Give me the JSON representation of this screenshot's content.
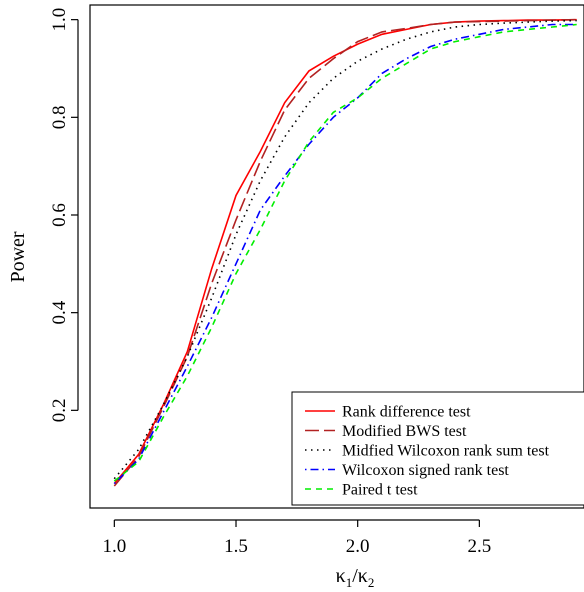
{
  "chart_data": {
    "type": "line",
    "xlabel_parts": [
      "κ",
      "1",
      "/κ",
      "2"
    ],
    "ylabel": "Power",
    "xlim": [
      0.9,
      2.93
    ],
    "ylim": [
      0.0,
      1.03
    ],
    "xticks": [
      1.0,
      1.5,
      2.0,
      2.5
    ],
    "xtick_labels": [
      "1.0",
      "1.5",
      "2.0",
      "2.5"
    ],
    "yticks": [
      0.2,
      0.4,
      0.6,
      0.8,
      1.0
    ],
    "ytick_labels": [
      "0.2",
      "0.4",
      "0.6",
      "0.8",
      "1.0"
    ],
    "grid": false,
    "legend_position": "bottom-right",
    "x": [
      1.0,
      1.1,
      1.2,
      1.3,
      1.4,
      1.5,
      1.6,
      1.7,
      1.8,
      1.9,
      2.0,
      2.1,
      2.2,
      2.3,
      2.4,
      2.5,
      2.6,
      2.7,
      2.8,
      2.9
    ],
    "series": [
      {
        "name": "Rank difference test",
        "color": "#ff0000",
        "dash": "solid",
        "values": [
          0.05,
          0.11,
          0.21,
          0.32,
          0.49,
          0.64,
          0.73,
          0.83,
          0.895,
          0.925,
          0.95,
          0.97,
          0.98,
          0.99,
          0.995,
          0.997,
          0.998,
          0.999,
          0.999,
          1.0
        ]
      },
      {
        "name": "Modified BWS test",
        "color": "#b22222",
        "dash": "longdash",
        "values": [
          0.045,
          0.105,
          0.205,
          0.31,
          0.46,
          0.59,
          0.71,
          0.815,
          0.88,
          0.92,
          0.955,
          0.975,
          0.982,
          0.99,
          0.995,
          0.996,
          0.997,
          0.998,
          0.999,
          1.0
        ]
      },
      {
        "name": "Midfied Wilcoxon rank sum test",
        "color": "#000000",
        "dash": "dotted",
        "values": [
          0.06,
          0.12,
          0.21,
          0.31,
          0.43,
          0.56,
          0.67,
          0.76,
          0.83,
          0.88,
          0.915,
          0.94,
          0.96,
          0.975,
          0.985,
          0.99,
          0.993,
          0.995,
          0.997,
          0.998
        ]
      },
      {
        "name": "Wilcoxon signed rank test",
        "color": "#0000ff",
        "dash": "dotdash",
        "values": [
          0.05,
          0.1,
          0.195,
          0.29,
          0.39,
          0.5,
          0.61,
          0.68,
          0.745,
          0.8,
          0.84,
          0.89,
          0.92,
          0.945,
          0.96,
          0.97,
          0.98,
          0.985,
          0.99,
          0.99
        ]
      },
      {
        "name": "Paired t test",
        "color": "#00ee00",
        "dash": "dashed",
        "values": [
          0.055,
          0.095,
          0.185,
          0.27,
          0.37,
          0.48,
          0.57,
          0.67,
          0.75,
          0.81,
          0.84,
          0.88,
          0.91,
          0.94,
          0.955,
          0.965,
          0.975,
          0.98,
          0.985,
          0.99
        ]
      }
    ]
  }
}
